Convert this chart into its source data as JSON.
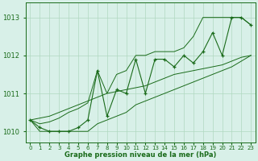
{
  "title": "Graphe pression niveau de la mer (hPa)",
  "hours": [
    0,
    1,
    2,
    3,
    4,
    5,
    6,
    7,
    8,
    9,
    10,
    11,
    12,
    13,
    14,
    15,
    16,
    17,
    18,
    19,
    20,
    21,
    22,
    23
  ],
  "pressure_main": [
    1010.3,
    1010.1,
    1010.0,
    1010.0,
    1010.0,
    1010.1,
    1010.3,
    1011.6,
    1010.4,
    1011.1,
    1011.0,
    1011.9,
    1011.0,
    1011.9,
    1011.9,
    1011.7,
    1012.0,
    1011.8,
    1012.1,
    1012.6,
    1012.0,
    1013.0,
    1013.0,
    1012.8
  ],
  "envelope_upper": [
    1010.3,
    1010.2,
    1010.25,
    1010.35,
    1010.5,
    1010.6,
    1010.75,
    1011.6,
    1011.0,
    1011.5,
    1011.6,
    1012.0,
    1012.0,
    1012.1,
    1012.1,
    1012.1,
    1012.2,
    1012.5,
    1013.0,
    1013.0,
    1013.0,
    1013.0,
    1013.0,
    1012.8
  ],
  "envelope_lower": [
    1010.3,
    1010.0,
    1010.0,
    1010.0,
    1010.0,
    1010.0,
    1010.0,
    1010.2,
    1010.3,
    1010.4,
    1010.5,
    1010.7,
    1010.8,
    1010.9,
    1011.0,
    1011.1,
    1011.2,
    1011.3,
    1011.4,
    1011.5,
    1011.6,
    1011.7,
    1011.85,
    1012.0
  ],
  "trend_line1": [
    1010.3,
    1010.35,
    1010.4,
    1010.5,
    1010.6,
    1010.7,
    1010.8,
    1010.9,
    1011.0,
    1011.05,
    1011.1,
    1011.15,
    1011.2,
    1011.3,
    1011.4,
    1011.5,
    1011.55,
    1011.6,
    1011.65,
    1011.7,
    1011.75,
    1011.85,
    1011.95,
    1012.0
  ],
  "line_color": "#1a6b1a",
  "bg_color": "#d8f0e8",
  "grid_color": "#b0d8c0",
  "ylim": [
    1009.7,
    1013.4
  ],
  "yticks": [
    1010,
    1011,
    1012,
    1013
  ],
  "marker": "+"
}
